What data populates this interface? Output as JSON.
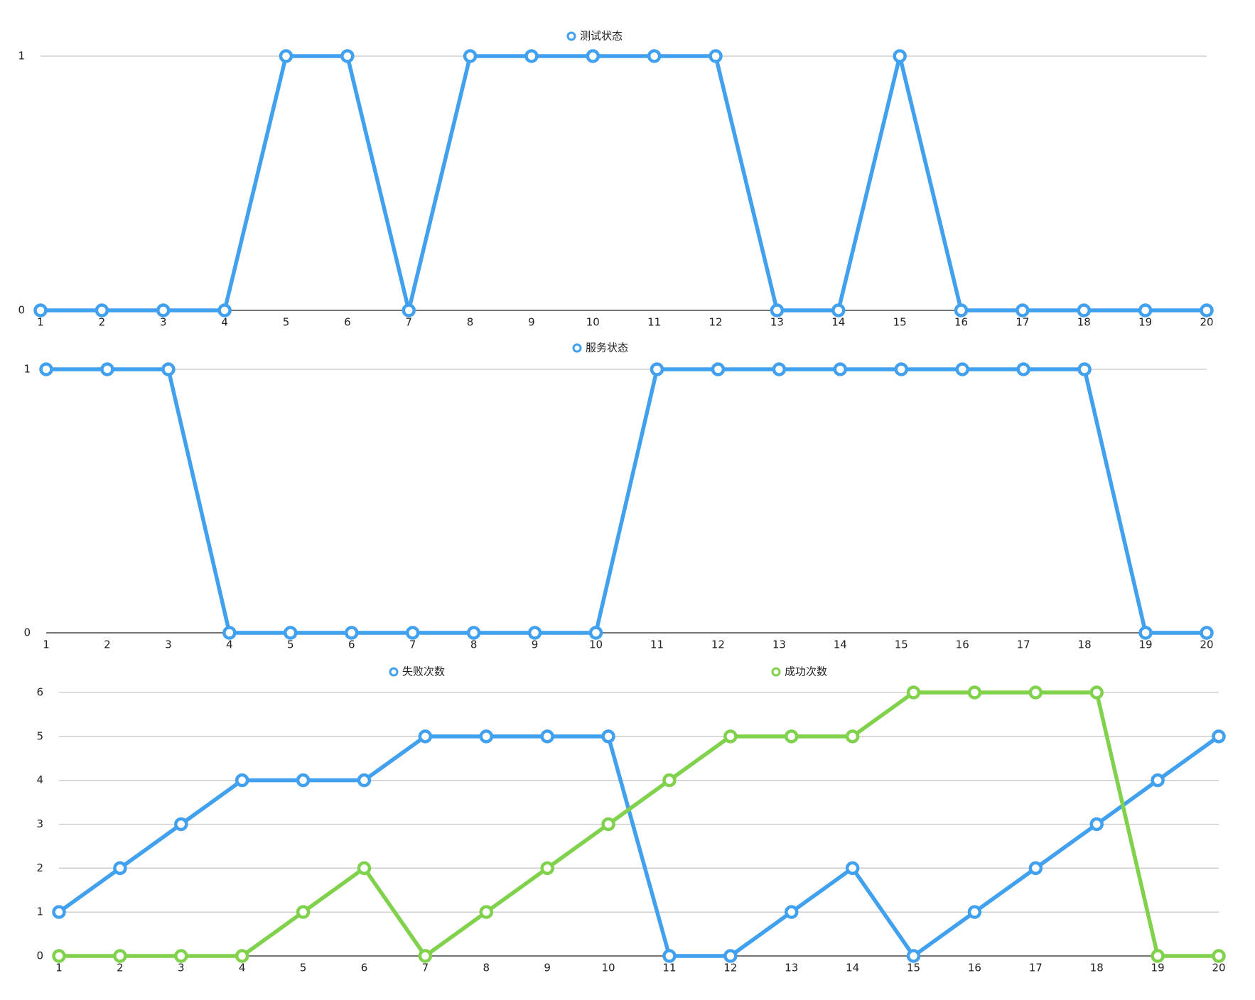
{
  "chart_data": [
    {
      "type": "line",
      "categories": [
        "1",
        "2",
        "3",
        "4",
        "5",
        "6",
        "7",
        "8",
        "9",
        "10",
        "11",
        "12",
        "13",
        "14",
        "15",
        "16",
        "17",
        "18",
        "19",
        "20"
      ],
      "series": [
        {
          "name": "测试状态",
          "color": "#42a1ee",
          "values": [
            0,
            0,
            0,
            0,
            1,
            1,
            0,
            1,
            1,
            1,
            1,
            1,
            0,
            0,
            1,
            0,
            0,
            0,
            0,
            0
          ]
        }
      ],
      "ylim": [
        0,
        1
      ],
      "yticks": [
        0,
        1
      ],
      "grid": true
    },
    {
      "type": "line",
      "categories": [
        "1",
        "2",
        "3",
        "4",
        "5",
        "6",
        "7",
        "8",
        "9",
        "10",
        "11",
        "12",
        "13",
        "14",
        "15",
        "16",
        "17",
        "18",
        "19",
        "20"
      ],
      "series": [
        {
          "name": "服务状态",
          "color": "#42a1ee",
          "values": [
            1,
            1,
            1,
            0,
            0,
            0,
            0,
            0,
            0,
            0,
            1,
            1,
            1,
            1,
            1,
            1,
            1,
            1,
            0,
            0
          ]
        }
      ],
      "ylim": [
        0,
        1
      ],
      "yticks": [
        0,
        1
      ],
      "grid": true
    },
    {
      "type": "line",
      "categories": [
        "1",
        "2",
        "3",
        "4",
        "5",
        "6",
        "7",
        "8",
        "9",
        "10",
        "11",
        "12",
        "13",
        "14",
        "15",
        "16",
        "17",
        "18",
        "19",
        "20"
      ],
      "series": [
        {
          "name": "失败次数",
          "color": "#42a1ee",
          "values": [
            1,
            2,
            3,
            4,
            4,
            4,
            5,
            5,
            5,
            5,
            0,
            0,
            1,
            2,
            0,
            1,
            2,
            3,
            4,
            5
          ]
        },
        {
          "name": "成功次数",
          "color": "#80d24c",
          "values": [
            0,
            0,
            0,
            0,
            1,
            2,
            0,
            1,
            2,
            3,
            4,
            5,
            5,
            5,
            6,
            6,
            6,
            6,
            0,
            0
          ]
        }
      ],
      "ylim": [
        0,
        6
      ],
      "yticks": [
        0,
        1,
        2,
        3,
        4,
        5,
        6
      ],
      "grid": true
    }
  ]
}
